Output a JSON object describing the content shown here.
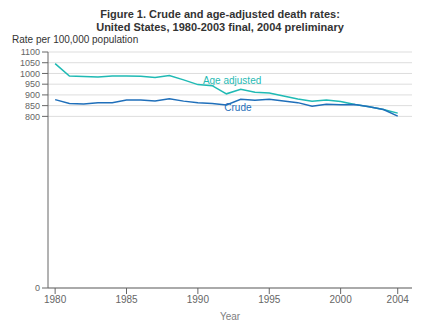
{
  "chart_data": {
    "type": "line",
    "title": "Figure 1. Crude and age-adjusted death rates:",
    "subtitle": "United States, 1980-2003 final, 2004 preliminary",
    "y_label": "Rate per 100,000 population",
    "x_label": "Year",
    "x": [
      1980,
      1981,
      1982,
      1983,
      1984,
      1985,
      1986,
      1987,
      1988,
      1989,
      1990,
      1991,
      1992,
      1993,
      1994,
      1995,
      1996,
      1997,
      1998,
      1999,
      2000,
      2001,
      2002,
      2003,
      2004
    ],
    "series": [
      {
        "name": "Age adjusted",
        "color": "#1fbab4",
        "values": [
          1046,
          988,
          986,
          984,
          988,
          988,
          987,
          981,
          990,
          970,
          948,
          943,
          905,
          926,
          912,
          909,
          895,
          881,
          870,
          876,
          869,
          855,
          845,
          832,
          815
        ]
      },
      {
        "name": "Crude",
        "color": "#1f6fba",
        "values": [
          878,
          860,
          858,
          863,
          864,
          876,
          876,
          872,
          882,
          871,
          863,
          860,
          853,
          880,
          875,
          880,
          872,
          864,
          847,
          857,
          854,
          855,
          845,
          832,
          801
        ]
      }
    ],
    "annotations": [
      {
        "text": "Age adjusted",
        "x": 1990.0,
        "y": 968,
        "color": "#1fbab4"
      },
      {
        "text": "Crude",
        "x": 1991.5,
        "y": 843,
        "color": "#1f6fba"
      }
    ],
    "xlim": [
      1979.5,
      2005.0
    ],
    "xticks": [
      1980,
      1985,
      1990,
      1995,
      2000,
      2004
    ],
    "ylim": [
      0,
      1100
    ],
    "yticks": [
      0,
      800,
      850,
      900,
      950,
      1000,
      1050,
      1100
    ],
    "grid": true
  }
}
